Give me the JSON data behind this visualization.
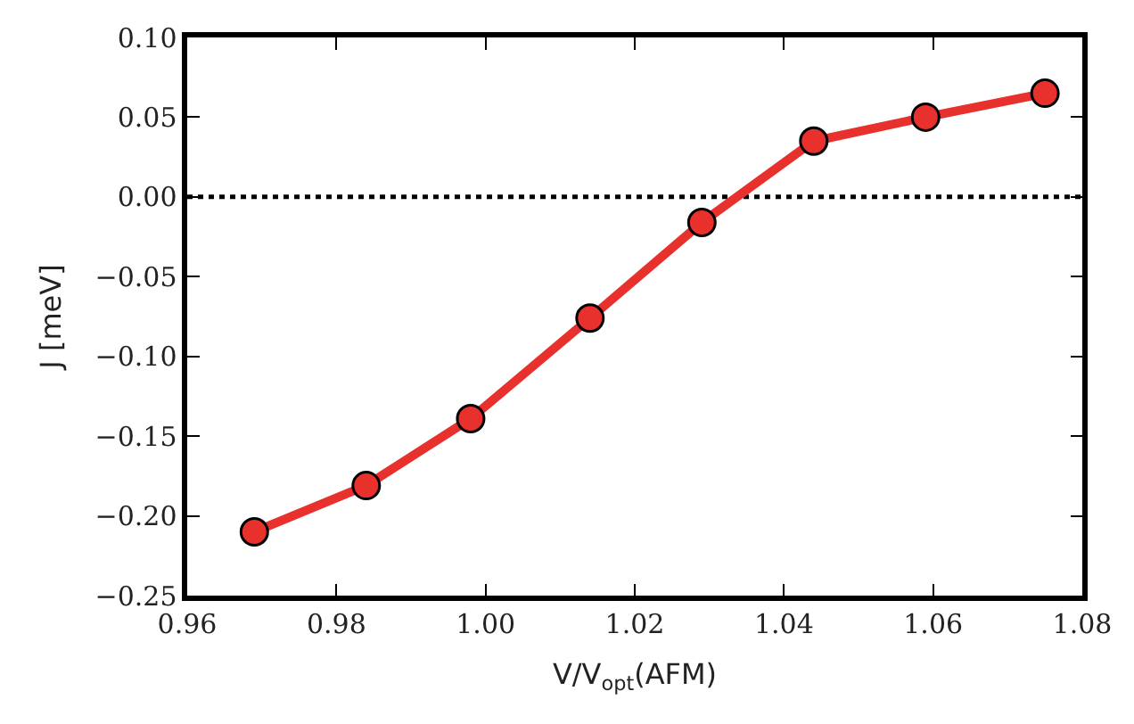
{
  "chart_data": {
    "type": "line",
    "xlabel": "V/V$_{opt}$(AFM)",
    "ylabel": "J [meV]",
    "x": [
      0.969,
      0.984,
      0.998,
      1.014,
      1.029,
      1.044,
      1.059,
      1.075
    ],
    "series": [
      {
        "color": "#e8302c",
        "values": [
          -0.21,
          -0.181,
          -0.139,
          -0.076,
          -0.016,
          0.035,
          0.05,
          0.065
        ]
      }
    ],
    "xlim": [
      0.96,
      1.08
    ],
    "xticks": [
      {
        "value": 0.96,
        "label": "0.96"
      },
      {
        "value": 0.98,
        "label": "0.98"
      },
      {
        "value": 1.0,
        "label": "1.00"
      },
      {
        "value": 1.02,
        "label": "1.02"
      },
      {
        "value": 1.04,
        "label": "1.04"
      },
      {
        "value": 1.06,
        "label": "1.06"
      },
      {
        "value": 1.08,
        "label": "1.08"
      }
    ],
    "ylim": [
      -0.25,
      0.1
    ],
    "yticks": [
      {
        "value": -0.25,
        "label": "−0.25"
      },
      {
        "value": -0.2,
        "label": "−0.20"
      },
      {
        "value": -0.15,
        "label": "−0.15"
      },
      {
        "value": -0.1,
        "label": "−0.10"
      },
      {
        "value": -0.05,
        "label": "−0.05"
      },
      {
        "value": 0.0,
        "label": "0.00"
      },
      {
        "value": 0.05,
        "label": "0.05"
      },
      {
        "value": 0.1,
        "label": "0.10"
      }
    ],
    "ref_lines": [
      {
        "axis": "y",
        "value": 0.0,
        "color": "#000000",
        "line_style": "dotted"
      }
    ],
    "marker": "circle",
    "line_style": "solid",
    "grid": false
  }
}
